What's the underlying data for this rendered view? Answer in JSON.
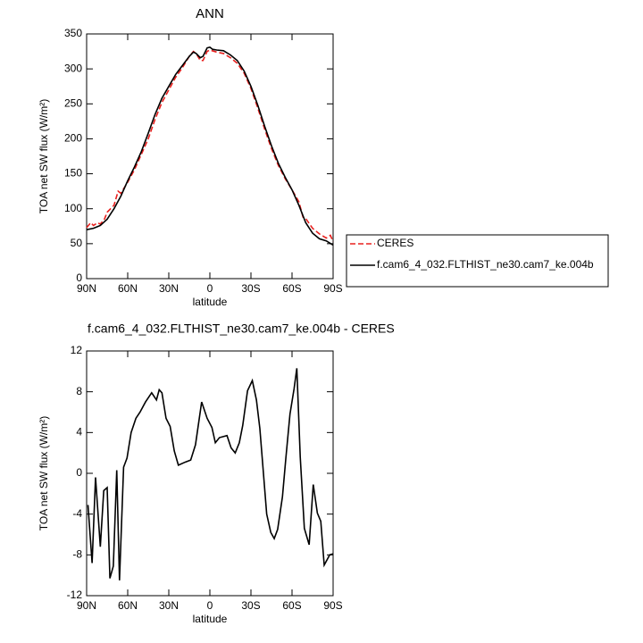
{
  "chart_data": [
    {
      "type": "line",
      "title": "ANN",
      "xlabel": "latitude",
      "ylabel": "TOA net SW flux (W/m²)",
      "xlim": [
        90,
        -90
      ],
      "xticks": [
        {
          "value": 90,
          "label": "90N"
        },
        {
          "value": 60,
          "label": "60N"
        },
        {
          "value": 30,
          "label": "30N"
        },
        0,
        {
          "value": -30,
          "label": "30S"
        },
        {
          "value": -60,
          "label": "60S"
        },
        {
          "value": -90,
          "label": "90S"
        }
      ],
      "ylim": [
        0,
        350
      ],
      "yticks": [
        0,
        50,
        100,
        150,
        200,
        250,
        300,
        350
      ],
      "legend": "outside-right",
      "series": [
        {
          "name": "CERES",
          "color": "#e8201e",
          "dashed": true,
          "x": [
            90,
            87,
            85,
            82,
            80,
            77,
            75,
            70,
            67,
            65,
            60,
            55,
            50,
            45,
            40,
            35,
            30,
            25,
            20,
            15,
            12,
            10,
            7,
            5,
            2,
            0,
            -5,
            -10,
            -15,
            -20,
            -25,
            -30,
            -35,
            -40,
            -45,
            -50,
            -55,
            -60,
            -65,
            -68,
            -70,
            -75,
            -80,
            -85,
            -88,
            -90
          ],
          "values": [
            73,
            80,
            76,
            80,
            78,
            85,
            95,
            105,
            125,
            122,
            138,
            156,
            178,
            200,
            228,
            252,
            270,
            288,
            302,
            318,
            325,
            322,
            312,
            312,
            325,
            327,
            324,
            322,
            316,
            308,
            294,
            272,
            244,
            214,
            186,
            162,
            143,
            127,
            110,
            88,
            86,
            72,
            64,
            58,
            62,
            53
          ]
        },
        {
          "name": "f.cam6_4_032.FLTHIST_ne30.cam7_ke.004b",
          "color": "#000000",
          "dashed": false,
          "x": [
            90,
            85,
            80,
            75,
            70,
            65,
            60,
            55,
            50,
            45,
            40,
            35,
            30,
            25,
            20,
            15,
            12,
            10,
            7,
            5,
            2,
            0,
            -2,
            -5,
            -10,
            -15,
            -20,
            -25,
            -30,
            -35,
            -40,
            -45,
            -50,
            -55,
            -60,
            -65,
            -70,
            -75,
            -80,
            -85,
            -90
          ],
          "values": [
            70,
            72,
            76,
            85,
            100,
            118,
            140,
            160,
            182,
            208,
            235,
            258,
            275,
            292,
            305,
            318,
            324,
            322,
            316,
            318,
            330,
            331,
            328,
            327,
            326,
            320,
            312,
            297,
            275,
            248,
            218,
            190,
            165,
            145,
            127,
            105,
            80,
            65,
            57,
            54,
            48
          ]
        }
      ]
    },
    {
      "type": "line",
      "title": "f.cam6_4_032.FLTHIST_ne30.cam7_ke.004b - CERES",
      "xlabel": "latitude",
      "ylabel": "TOA net SW flux (W/m²)",
      "xlim": [
        90,
        -90
      ],
      "xticks": [
        {
          "value": 90,
          "label": "90N"
        },
        {
          "value": 60,
          "label": "60N"
        },
        {
          "value": 30,
          "label": "30N"
        },
        0,
        {
          "value": -30,
          "label": "30S"
        },
        {
          "value": -60,
          "label": "60S"
        },
        {
          "value": -90,
          "label": "90S"
        }
      ],
      "ylim": [
        -12,
        12
      ],
      "yticks": [
        -12,
        -8,
        -4,
        0,
        4,
        8,
        12
      ],
      "series": [
        {
          "color": "#000000",
          "dashed": false,
          "x": [
            89,
            86,
            83.5,
            80,
            77.5,
            75,
            73,
            70.5,
            68,
            66,
            63,
            60.5,
            57.5,
            54,
            51,
            47,
            42.5,
            39,
            37,
            35,
            32,
            29,
            26,
            23,
            18,
            14,
            10.5,
            6,
            2,
            -1.5,
            -4,
            -7,
            -12.5,
            -15.5,
            -18.5,
            -21.5,
            -24,
            -27.5,
            -31,
            -34,
            -36.5,
            -39,
            -41.5,
            -44.5,
            -47,
            -49.5,
            -53,
            -55.5,
            -58.5,
            -61.5,
            -63.5,
            -66,
            -69,
            -72.5,
            -75.5,
            -78.5,
            -81,
            -83.5,
            -87.5,
            -90
          ],
          "values": [
            -3.1,
            -8.8,
            -0.4,
            -7.2,
            -1.7,
            -1.4,
            -10.3,
            -9.1,
            0.3,
            -10.5,
            0.6,
            1.5,
            4.0,
            5.4,
            6.0,
            7.0,
            7.9,
            7.2,
            8.2,
            7.9,
            5.4,
            4.6,
            2.2,
            0.8,
            1.1,
            1.3,
            2.8,
            7.0,
            5.4,
            4.5,
            3.0,
            3.5,
            3.7,
            2.5,
            2.0,
            3.0,
            4.7,
            8.1,
            9.1,
            7.2,
            4.4,
            0.2,
            -4.0,
            -5.8,
            -6.4,
            -5.5,
            -2.3,
            1.5,
            5.8,
            8.3,
            10.3,
            1.6,
            -5.4,
            -7.0,
            -1.1,
            -3.9,
            -4.7,
            -9.0,
            -8.0,
            -7.9
          ]
        }
      ]
    }
  ]
}
